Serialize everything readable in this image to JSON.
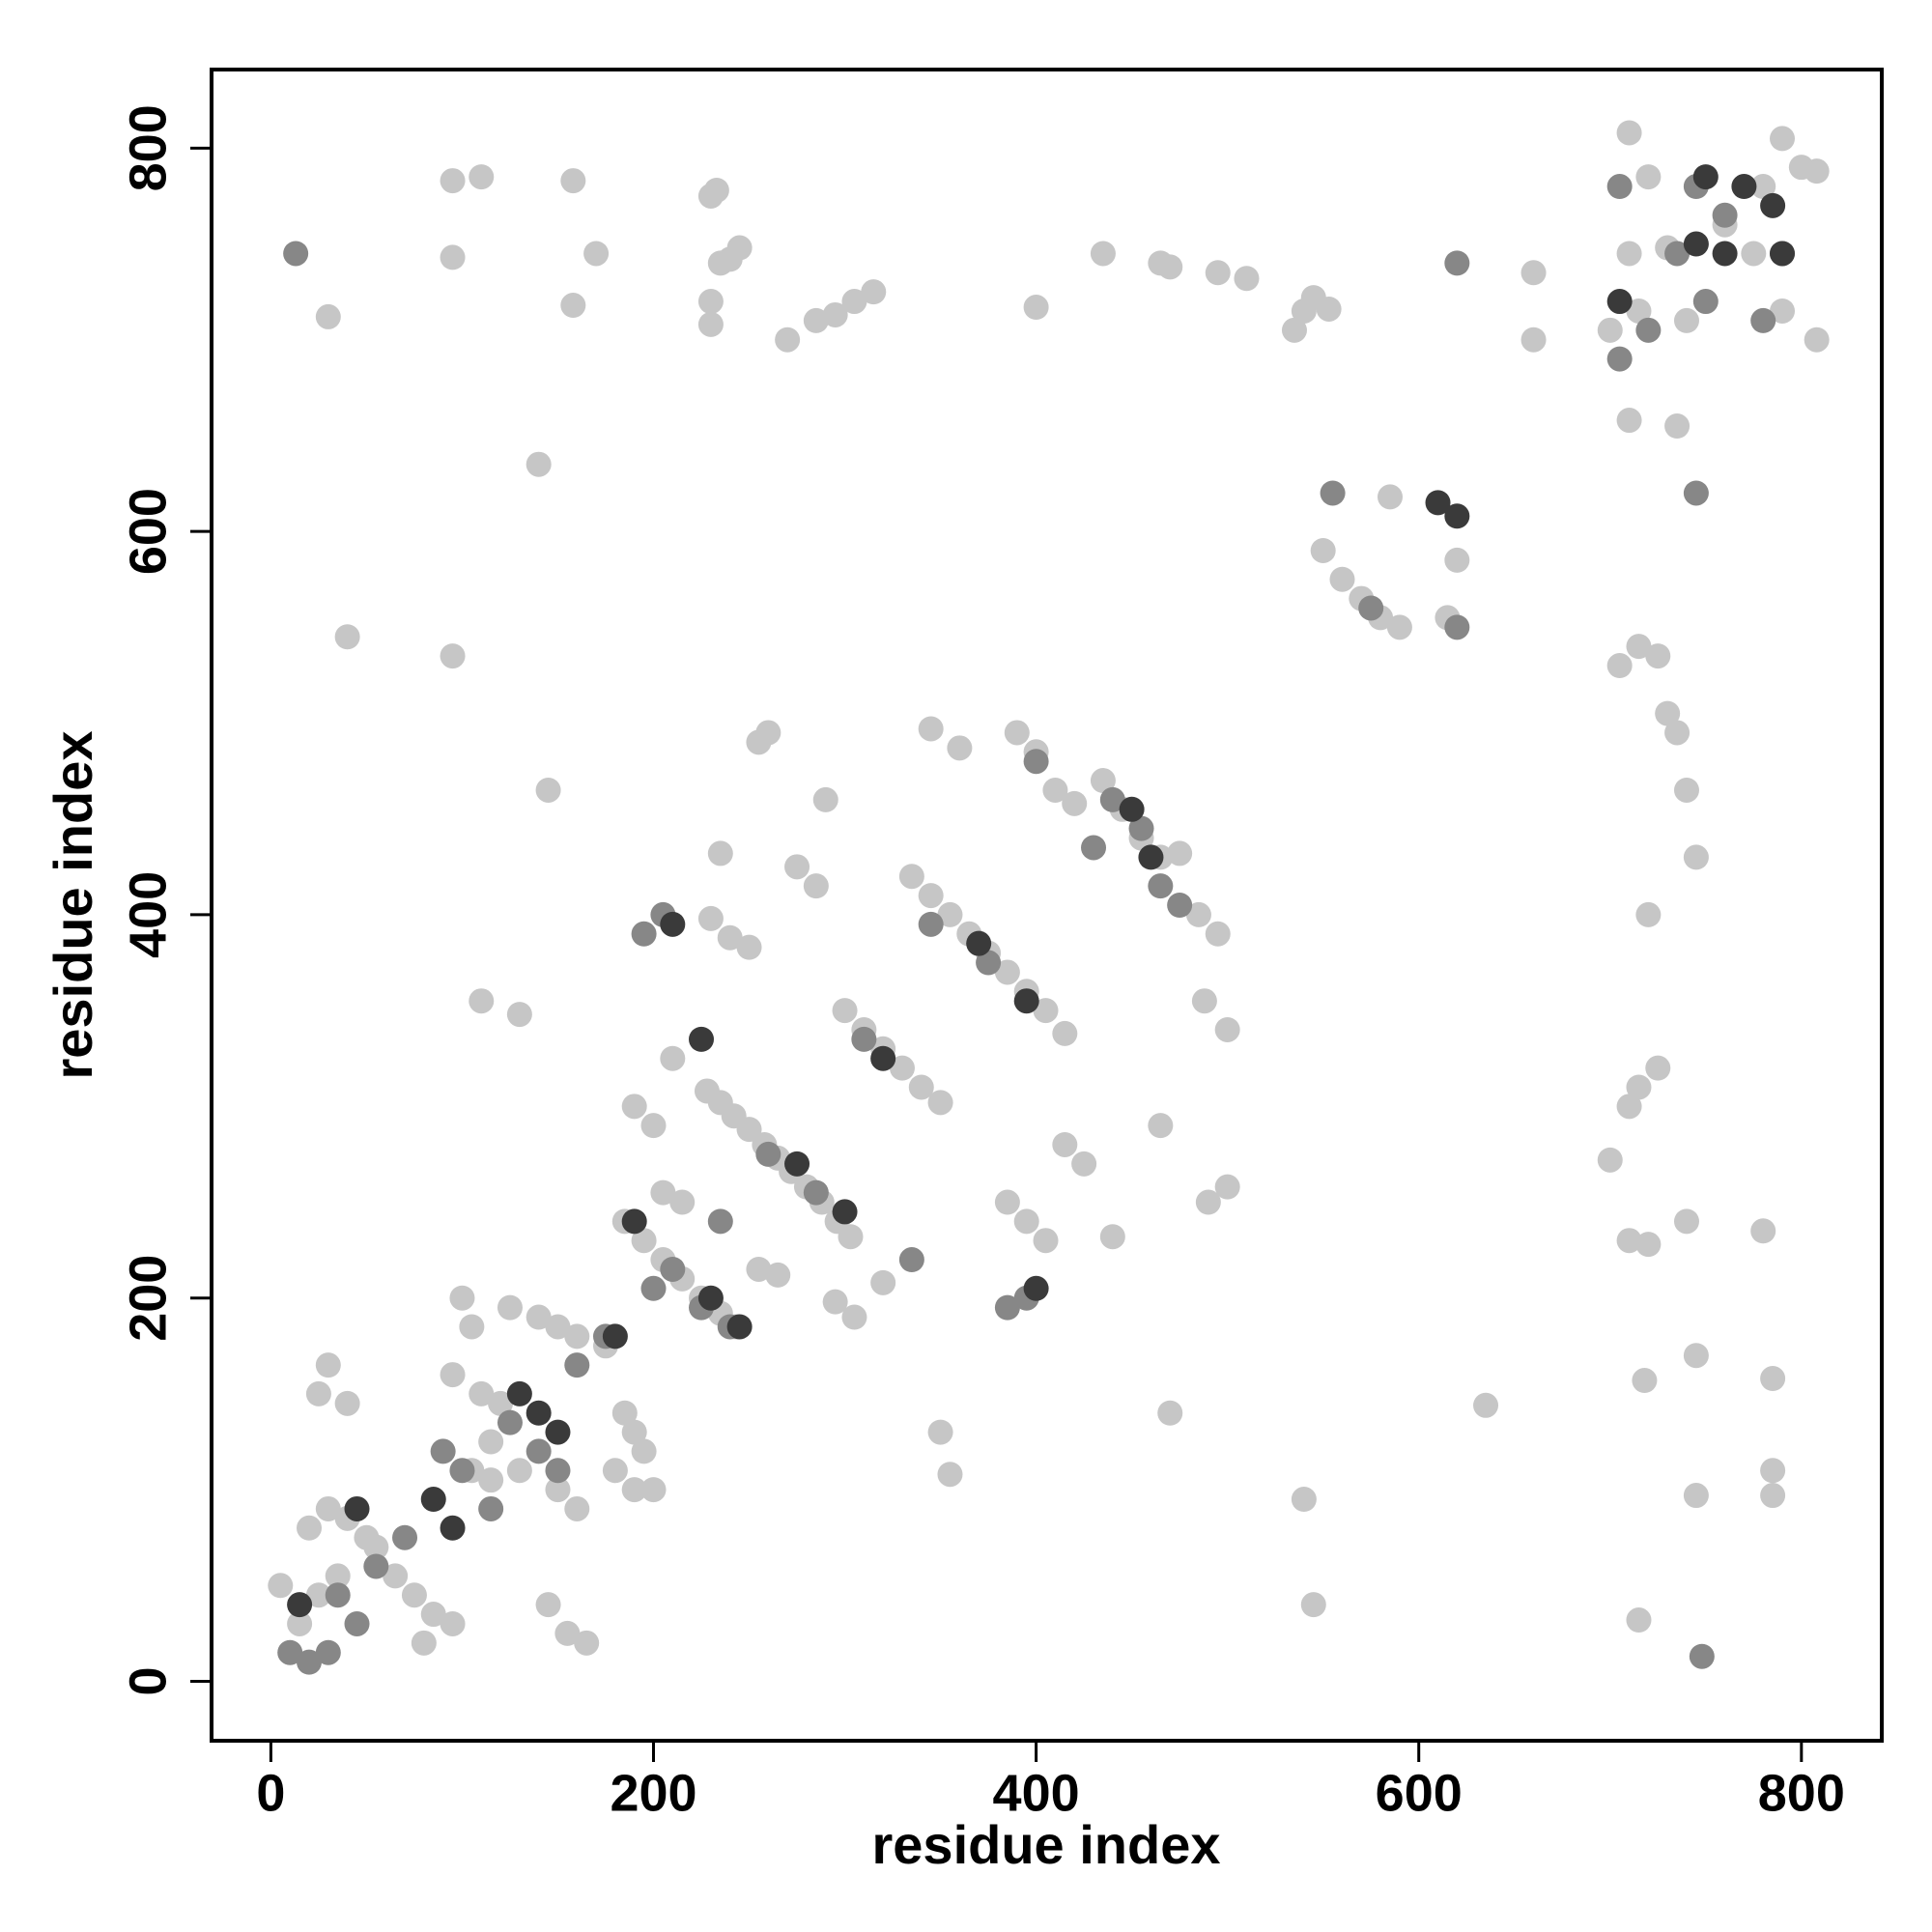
{
  "chart_data": {
    "type": "scatter",
    "x_label": "residue index",
    "y_label": "residue index",
    "xlim": [
      -31,
      842
    ],
    "ylim": [
      -31,
      841
    ],
    "xticks": [
      0,
      200,
      400,
      600,
      800
    ],
    "yticks": [
      0,
      200,
      400,
      600,
      800
    ],
    "grid": false,
    "series": [
      {
        "color": "#c6c6c6",
        "x": [
          228,
          235,
          242,
          250,
          258,
          265,
          272,
          280,
          288,
          296,
          303,
          185,
          195,
          205,
          215,
          225,
          235,
          243,
          300,
          310,
          320,
          330,
          340,
          350,
          335,
          345,
          355,
          365,
          375,
          385,
          395,
          405,
          415,
          390,
          400,
          410,
          420,
          435,
          445,
          455,
          465,
          475,
          485,
          495,
          5,
          15,
          25,
          35,
          30,
          40,
          50,
          55,
          65,
          75,
          85,
          95,
          20,
          80,
          100,
          105,
          95,
          110,
          120,
          105,
          115,
          125,
          140,
          150,
          160,
          175,
          185,
          190,
          195,
          180,
          190,
          200,
          150,
          160,
          145,
          155,
          165,
          30,
          25,
          40,
          130,
          115,
          40,
          95,
          145,
          140,
          110,
          130,
          260,
          255,
          235,
          230,
          240,
          250,
          275,
          285,
          210,
          190,
          200,
          205,
          215,
          255,
          265,
          295,
          305,
          320,
          290,
          345,
          360,
          385,
          395,
          405,
          415,
          425,
          440,
          465,
          490,
          500,
          488,
          500,
          470,
          350,
          355,
          540,
          545,
          715,
          718,
          745,
          745,
          785,
          785,
          785,
          635,
          710,
          720,
          740,
          780,
          700,
          710,
          715,
          725,
          720,
          740,
          745,
          735,
          730,
          705,
          715,
          725,
          710,
          735,
          550,
          560,
          570,
          580,
          590,
          585,
          620,
          615,
          660,
          660,
          700,
          715,
          710,
          720,
          710,
          740,
          760,
          780,
          790,
          800,
          808,
          808,
          790,
          775,
          730,
          30,
          95,
          95,
          110,
          158,
          158,
          170,
          230,
          235,
          240,
          245,
          233,
          230,
          270,
          285,
          295,
          305,
          315,
          400,
          435,
          465,
          470,
          495,
          510,
          535,
          540,
          545,
          553,
          230
        ],
        "values": [
          308,
          302,
          295,
          288,
          280,
          273,
          266,
          258,
          250,
          240,
          232,
          240,
          230,
          220,
          210,
          200,
          192,
          185,
          350,
          340,
          330,
          320,
          310,
          302,
          420,
          410,
          400,
          390,
          380,
          370,
          360,
          350,
          338,
          495,
          485,
          465,
          458,
          470,
          455,
          440,
          430,
          432,
          400,
          390,
          50,
          30,
          45,
          55,
          90,
          85,
          75,
          70,
          55,
          45,
          35,
          30,
          80,
          20,
          200,
          185,
          160,
          150,
          145,
          110,
          105,
          195,
          190,
          185,
          180,
          175,
          140,
          130,
          120,
          110,
          100,
          100,
          100,
          90,
          40,
          25,
          20,
          165,
          150,
          145,
          110,
          125,
          545,
          535,
          465,
          635,
          355,
          348,
          495,
          490,
          432,
          398,
          388,
          383,
          425,
          415,
          325,
          300,
          290,
          255,
          250,
          215,
          212,
          198,
          190,
          208,
          460,
          497,
          487,
          250,
          240,
          230,
          280,
          270,
          232,
          290,
          250,
          258,
          355,
          340,
          140,
          130,
          108,
          95,
          40,
          32,
          157,
          170,
          97,
          110,
          158,
          97,
          144,
          230,
          228,
          240,
          235,
          272,
          300,
          310,
          320,
          400,
          465,
          430,
          495,
          505,
          530,
          540,
          535,
          658,
          655,
          590,
          575,
          565,
          555,
          550,
          618,
          585,
          555,
          700,
          735,
          705,
          715,
          745,
          785,
          808,
          710,
          760,
          780,
          805,
          790,
          788,
          700,
          715,
          745,
          748,
          712,
          743,
          783,
          785,
          783,
          718,
          745,
          720,
          740,
          742,
          748,
          778,
          708,
          700,
          710,
          713,
          720,
          725,
          717,
          745,
          740,
          738,
          735,
          732,
          705,
          715,
          722,
          716,
          775
        ]
      },
      {
        "color": "#878787",
        "x": [
          10,
          20,
          30,
          35,
          45,
          55,
          70,
          90,
          100,
          115,
          125,
          140,
          150,
          160,
          175,
          200,
          210,
          225,
          240,
          260,
          285,
          310,
          345,
          375,
          440,
          455,
          465,
          395,
          385,
          235,
          13,
          705,
          720,
          735,
          750,
          760,
          790,
          555,
          575,
          620,
          745,
          748,
          620,
          335,
          400,
          430,
          475,
          745,
          780,
          705,
          195,
          205
        ],
        "values": [
          15,
          10,
          15,
          45,
          30,
          60,
          75,
          120,
          110,
          90,
          135,
          120,
          110,
          165,
          180,
          205,
          215,
          195,
          185,
          275,
          255,
          335,
          395,
          375,
          460,
          445,
          415,
          200,
          195,
          240,
          745,
          690,
          705,
          745,
          720,
          765,
          745,
          620,
          560,
          740,
          620,
          13,
          550,
          220,
          480,
          435,
          405,
          780,
          710,
          780,
          390,
          400
        ]
      },
      {
        "color": "#3a3a3a",
        "x": [
          15,
          45,
          85,
          95,
          130,
          140,
          150,
          180,
          190,
          230,
          245,
          275,
          300,
          320,
          370,
          395,
          450,
          460,
          610,
          620,
          745,
          760,
          790,
          785,
          770,
          705,
          750,
          400,
          225,
          210
        ],
        "values": [
          40,
          90,
          95,
          80,
          150,
          140,
          130,
          180,
          240,
          200,
          185,
          270,
          245,
          325,
          385,
          355,
          455,
          430,
          615,
          608,
          750,
          745,
          745,
          770,
          780,
          720,
          785,
          205,
          335,
          395
        ]
      }
    ]
  }
}
